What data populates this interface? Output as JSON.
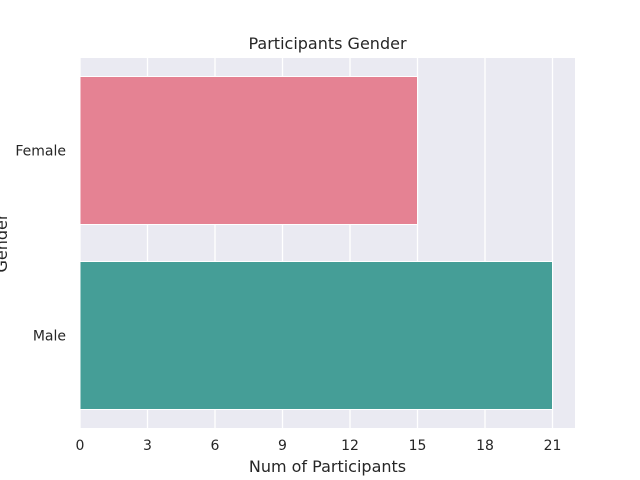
{
  "chart_data": {
    "type": "bar",
    "orientation": "horizontal",
    "title": "Participants Gender",
    "xlabel": "Num of Participants",
    "ylabel": "Gender",
    "categories": [
      "Female",
      "Male"
    ],
    "values": [
      15,
      21
    ],
    "xlim": [
      0,
      22
    ],
    "xticks": [
      0,
      3,
      6,
      9,
      12,
      15,
      18,
      21
    ],
    "grid": true,
    "colors": {
      "Female": "#e58293",
      "Male": "#459e97",
      "plot_background": "#eaeaf2",
      "grid": "#ffffff"
    }
  }
}
